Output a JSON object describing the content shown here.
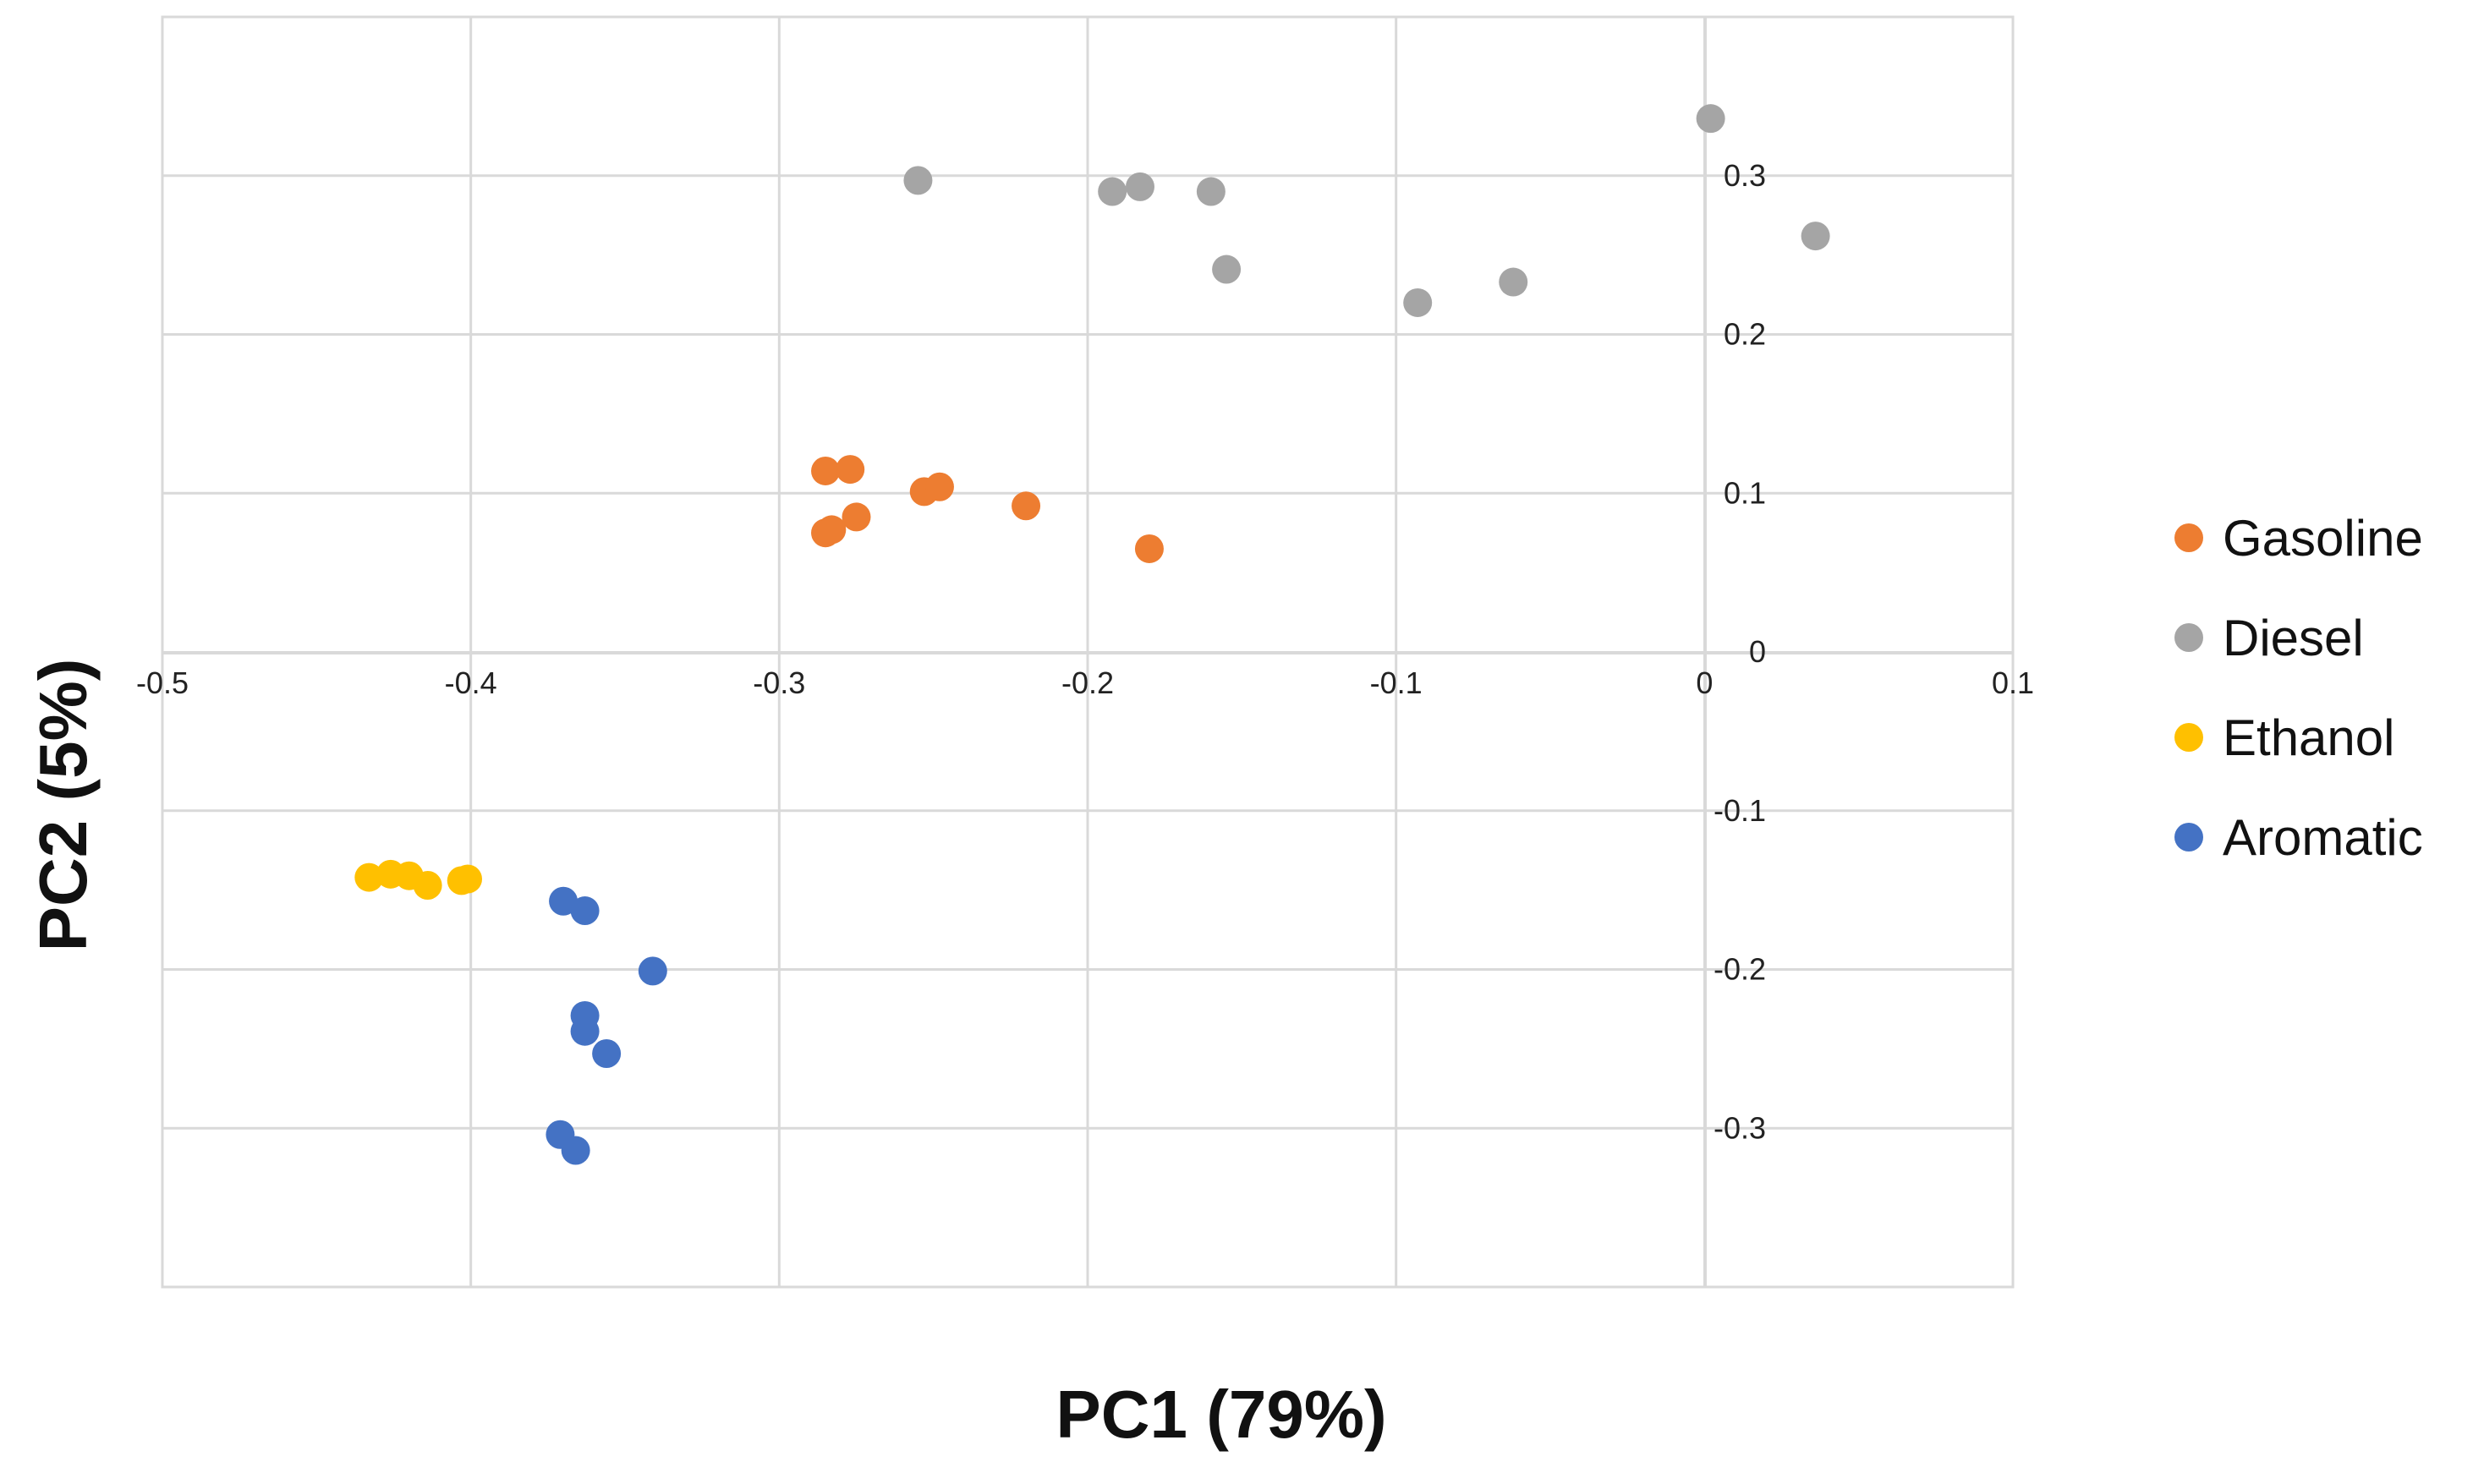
{
  "chart_data": {
    "type": "scatter",
    "title": "",
    "xlabel": "PC1 (79%)",
    "ylabel": "PC2 (5%)",
    "xlim": [
      -0.5,
      0.1
    ],
    "ylim": [
      -0.4,
      0.4
    ],
    "xticks": [
      -0.5,
      -0.4,
      -0.3,
      -0.2,
      -0.1,
      0,
      0.1
    ],
    "xtick_labels": [
      "-0.5",
      "-0.4",
      "-0.3",
      "-0.2",
      "-0.1",
      "0",
      "0.1"
    ],
    "yticks": [
      0.3,
      0.2,
      0.1,
      0,
      -0.1,
      -0.2,
      -0.3
    ],
    "ytick_labels": [
      "0.3",
      "0.2",
      "0.1",
      "0",
      "-0.1",
      "-0.2",
      "-0.3"
    ],
    "grid": true,
    "legend_position": "right",
    "series": [
      {
        "name": "Gasoline",
        "color": "#ED7D31",
        "points": [
          [
            -0.285,
            0.114
          ],
          [
            -0.277,
            0.115
          ],
          [
            -0.253,
            0.101
          ],
          [
            -0.248,
            0.104
          ],
          [
            -0.22,
            0.092
          ],
          [
            -0.285,
            0.075
          ],
          [
            -0.283,
            0.077
          ],
          [
            -0.275,
            0.085
          ],
          [
            -0.18,
            0.065
          ]
        ]
      },
      {
        "name": "Diesel",
        "color": "#A5A5A5",
        "points": [
          [
            -0.255,
            0.297
          ],
          [
            -0.192,
            0.29
          ],
          [
            -0.183,
            0.293
          ],
          [
            -0.16,
            0.29
          ],
          [
            -0.155,
            0.241
          ],
          [
            -0.093,
            0.22
          ],
          [
            -0.062,
            0.233
          ],
          [
            0.002,
            0.336
          ],
          [
            0.036,
            0.262
          ]
        ]
      },
      {
        "name": "Ethanol",
        "color": "#FFC000",
        "points": [
          [
            -0.433,
            -0.142
          ],
          [
            -0.426,
            -0.14
          ],
          [
            -0.42,
            -0.141
          ],
          [
            -0.414,
            -0.147
          ],
          [
            -0.403,
            -0.144
          ],
          [
            -0.401,
            -0.143
          ]
        ]
      },
      {
        "name": "Aromatic",
        "color": "#4472C4",
        "points": [
          [
            -0.37,
            -0.157
          ],
          [
            -0.363,
            -0.163
          ],
          [
            -0.341,
            -0.201
          ],
          [
            -0.363,
            -0.229
          ],
          [
            -0.363,
            -0.239
          ],
          [
            -0.356,
            -0.253
          ],
          [
            -0.371,
            -0.304
          ],
          [
            -0.366,
            -0.314
          ]
        ]
      }
    ]
  }
}
